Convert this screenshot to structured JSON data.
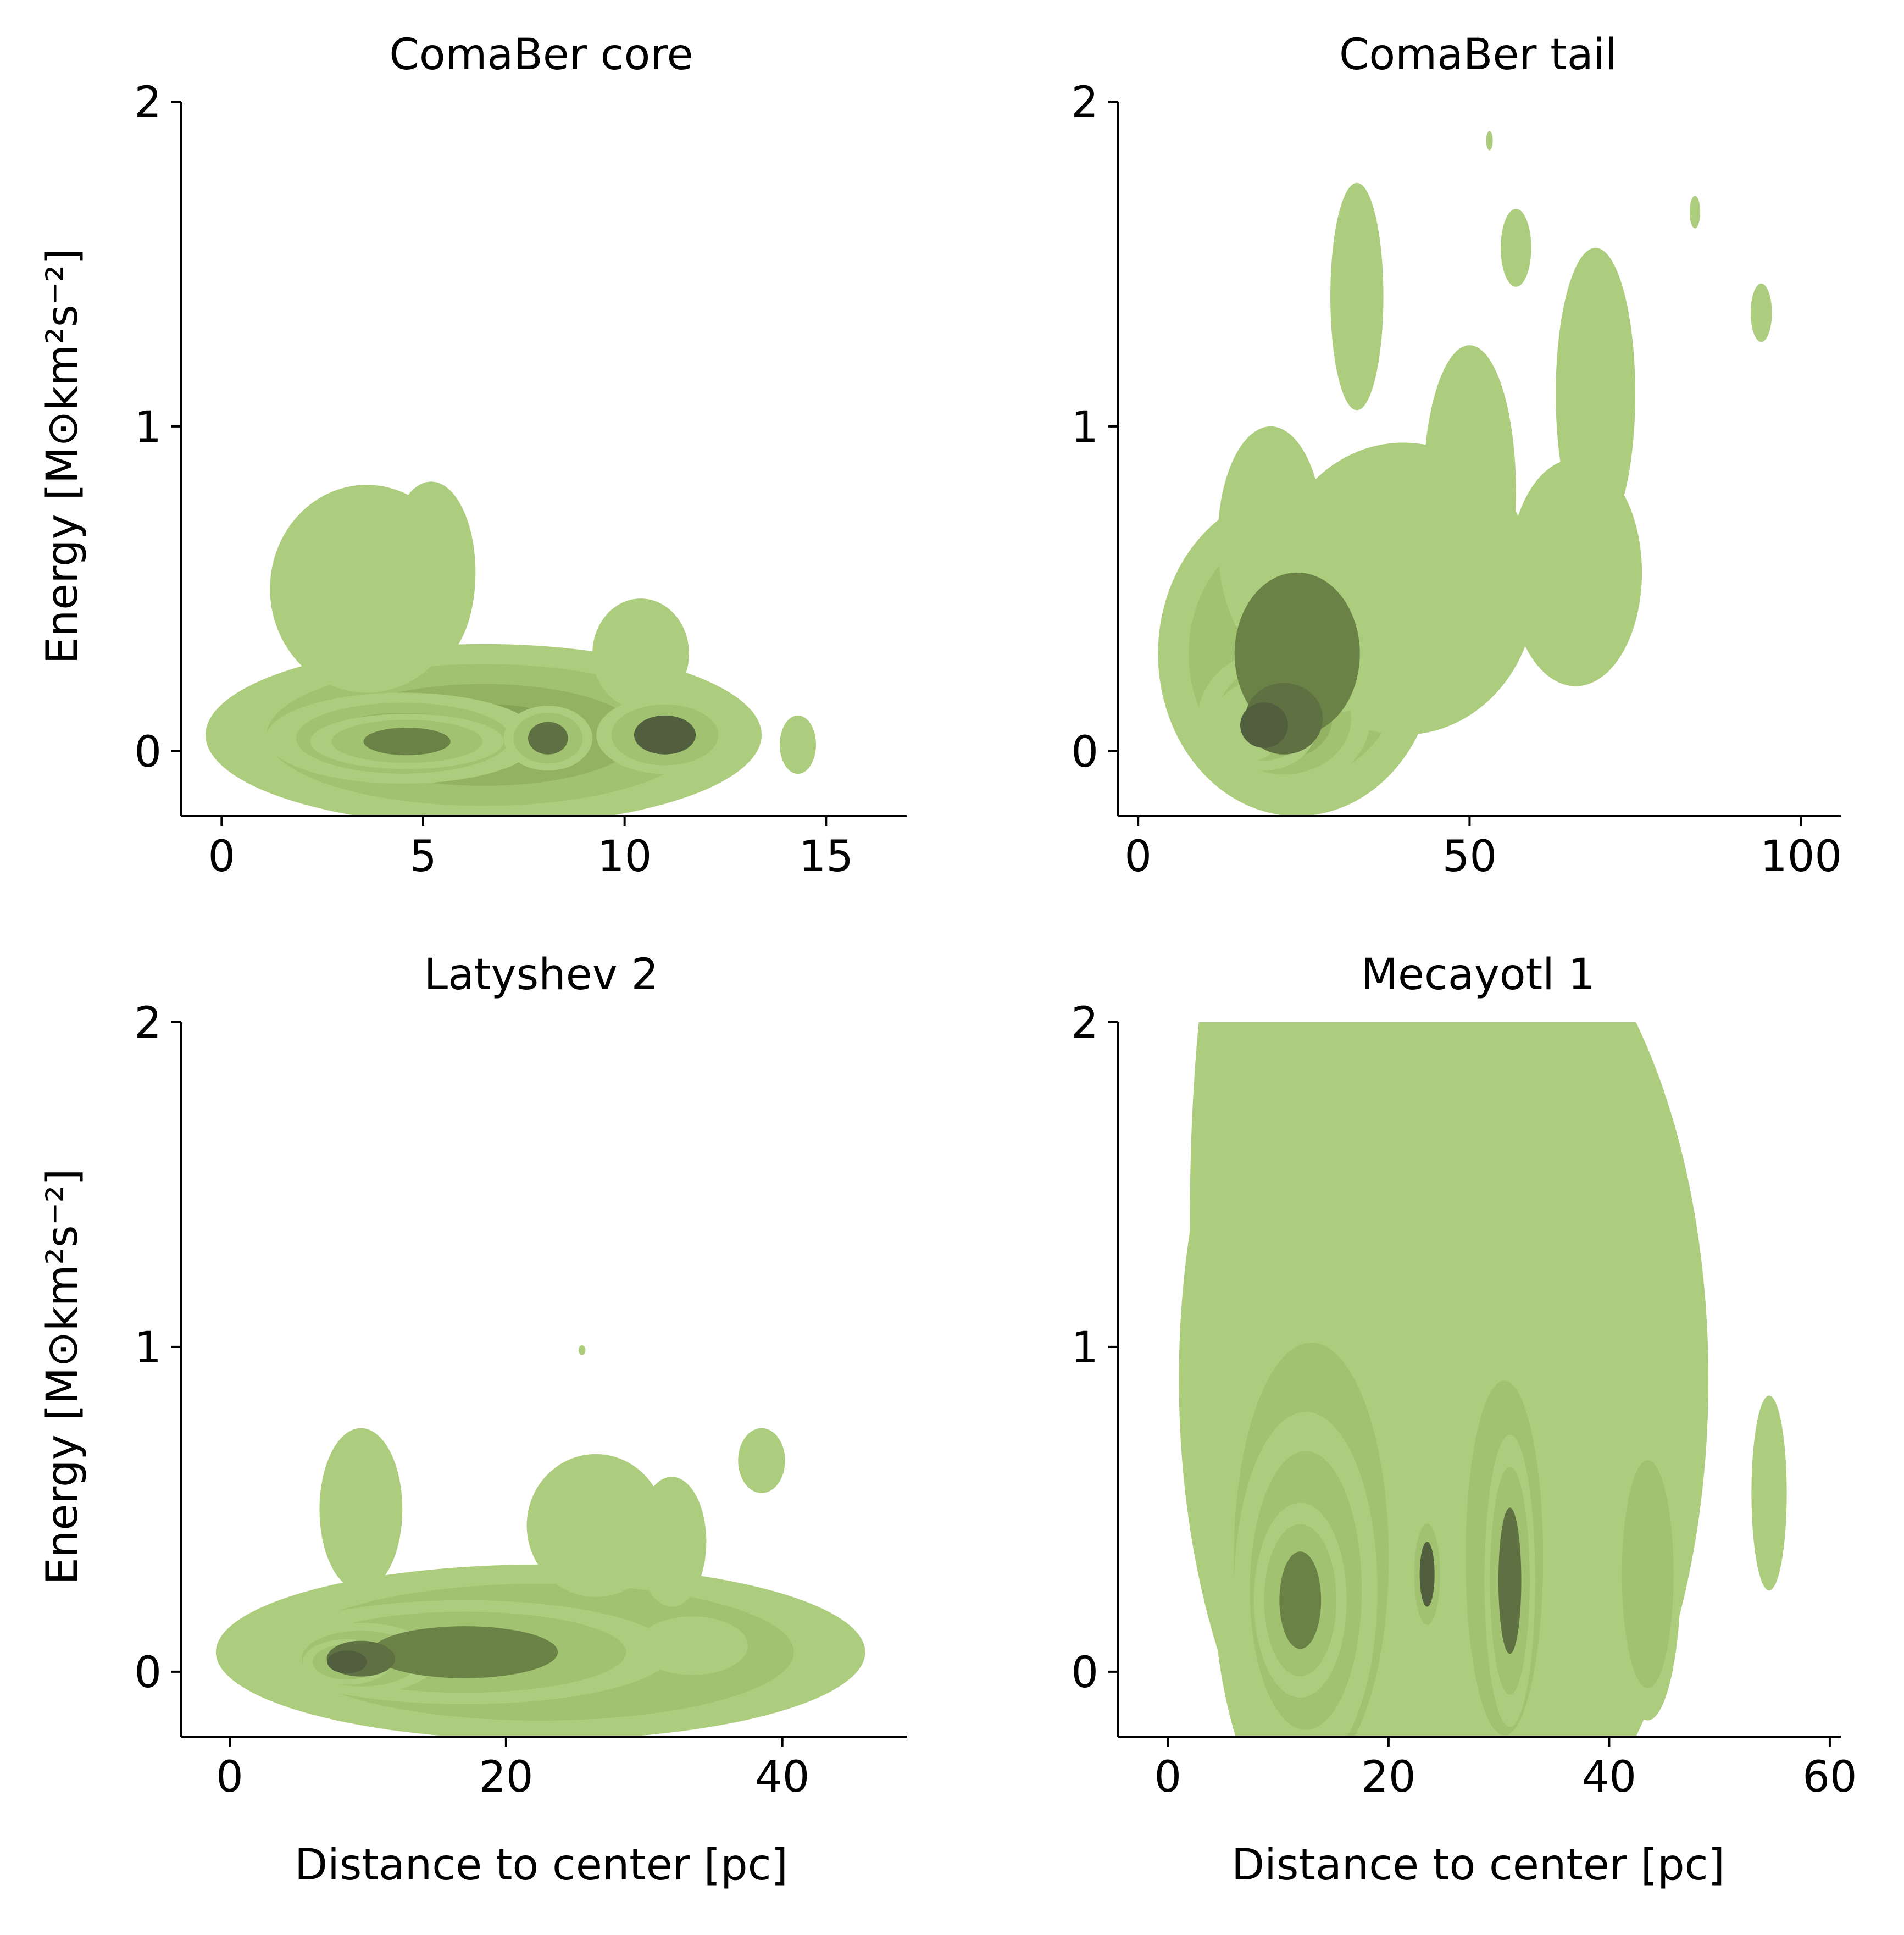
{
  "figure": {
    "palette": [
      "#adcd7e",
      "#9fc06f",
      "#91b05f",
      "#84a154",
      "#76904a",
      "#6a8245",
      "#5f7143",
      "#525f3f"
    ],
    "axis_color": "#000000"
  },
  "chart_data": [
    {
      "type": "kde-contour",
      "title": "ComaBer core",
      "xlabel": "",
      "ylabel": "Energy [M⊙km²s⁻²]",
      "xlim": [
        -1,
        17
      ],
      "ylim": [
        -0.2,
        2
      ],
      "xticks": [
        0,
        5,
        10,
        15
      ],
      "yticks": [
        0,
        1,
        2
      ],
      "grid": false,
      "blobs": [
        {
          "cx": 6.5,
          "cy": 0.05,
          "rx": 6.9,
          "ry": 0.28,
          "levels": 4
        },
        {
          "cx": 3.6,
          "cy": 0.5,
          "rx": 2.4,
          "ry": 0.32,
          "levels": 1
        },
        {
          "cx": 5.2,
          "cy": 0.55,
          "rx": 1.1,
          "ry": 0.28,
          "levels": 1
        },
        {
          "cx": 10.4,
          "cy": 0.3,
          "rx": 1.2,
          "ry": 0.17,
          "levels": 1
        },
        {
          "cx": 4.5,
          "cy": 0.04,
          "rx": 3.4,
          "ry": 0.14,
          "levels": 3
        },
        {
          "cx": 4.6,
          "cy": 0.03,
          "rx": 2.4,
          "ry": 0.085,
          "levels": 2
        },
        {
          "cx": 8.1,
          "cy": 0.04,
          "rx": 1.1,
          "ry": 0.1,
          "levels": 2
        },
        {
          "cx": 11.0,
          "cy": 0.05,
          "rx": 1.7,
          "ry": 0.12,
          "levels": 2
        },
        {
          "cx": 14.3,
          "cy": 0.02,
          "rx": 0.45,
          "ry": 0.09,
          "levels": 1
        }
      ]
    },
    {
      "type": "kde-contour",
      "title": "ComaBer tail",
      "xlabel": "",
      "ylabel": "",
      "xlim": [
        -3,
        106
      ],
      "ylim": [
        -0.2,
        2
      ],
      "xticks": [
        0,
        50,
        100
      ],
      "yticks": [
        0,
        1,
        2
      ],
      "grid": false,
      "blobs": [
        {
          "cx": 24,
          "cy": 0.3,
          "rx": 21,
          "ry": 0.5,
          "levels": 2
        },
        {
          "cx": 40,
          "cy": 0.5,
          "rx": 20,
          "ry": 0.45,
          "levels": 1
        },
        {
          "cx": 20,
          "cy": 0.65,
          "rx": 8,
          "ry": 0.35,
          "levels": 1
        },
        {
          "cx": 50,
          "cy": 0.8,
          "rx": 7,
          "ry": 0.45,
          "levels": 1
        },
        {
          "cx": 66,
          "cy": 0.55,
          "rx": 10,
          "ry": 0.35,
          "levels": 1
        },
        {
          "cx": 69,
          "cy": 1.1,
          "rx": 6,
          "ry": 0.45,
          "levels": 1
        },
        {
          "cx": 33,
          "cy": 1.4,
          "rx": 4,
          "ry": 0.35,
          "levels": 1
        },
        {
          "cx": 57,
          "cy": 1.55,
          "rx": 2.3,
          "ry": 0.12,
          "levels": 1
        },
        {
          "cx": 94,
          "cy": 1.35,
          "rx": 1.6,
          "ry": 0.09,
          "levels": 1
        },
        {
          "cx": 84,
          "cy": 1.66,
          "rx": 0.8,
          "ry": 0.05,
          "levels": 1
        },
        {
          "cx": 53,
          "cy": 1.88,
          "rx": 0.5,
          "ry": 0.03,
          "levels": 1
        },
        {
          "cx": 22,
          "cy": 0.1,
          "rx": 13,
          "ry": 0.22,
          "levels": 3
        },
        {
          "cx": 19,
          "cy": 0.08,
          "rx": 8,
          "ry": 0.14,
          "levels": 2
        },
        {
          "cx": 17,
          "cy": 0.08,
          "rx": 5,
          "ry": 0.11,
          "levels": 1
        },
        {
          "cx": 30,
          "cy": 0.2,
          "rx": 6,
          "ry": 0.08,
          "levels": 1
        }
      ]
    },
    {
      "type": "kde-contour",
      "title": "Latyshev 2",
      "xlabel": "Distance to center [pc]",
      "ylabel": "Energy [M⊙km²s⁻²]",
      "xlim": [
        -3.5,
        49
      ],
      "ylim": [
        -0.2,
        2
      ],
      "xticks": [
        0,
        20,
        40
      ],
      "yticks": [
        0,
        1,
        2
      ],
      "grid": false,
      "blobs": [
        {
          "cx": 22.5,
          "cy": 0.06,
          "rx": 23.5,
          "ry": 0.27,
          "levels": 2
        },
        {
          "cx": 9.5,
          "cy": 0.5,
          "rx": 3,
          "ry": 0.25,
          "levels": 1
        },
        {
          "cx": 26.5,
          "cy": 0.45,
          "rx": 5,
          "ry": 0.22,
          "levels": 1
        },
        {
          "cx": 32,
          "cy": 0.4,
          "rx": 2.5,
          "ry": 0.2,
          "levels": 1
        },
        {
          "cx": 38.5,
          "cy": 0.65,
          "rx": 1.7,
          "ry": 0.1,
          "levels": 1
        },
        {
          "cx": 25.5,
          "cy": 0.99,
          "rx": 0.25,
          "ry": 0.015,
          "levels": 1
        },
        {
          "cx": 17,
          "cy": 0.06,
          "rx": 15,
          "ry": 0.16,
          "levels": 2
        },
        {
          "cx": 9.5,
          "cy": 0.04,
          "rx": 5.5,
          "ry": 0.11,
          "levels": 2
        },
        {
          "cx": 8.5,
          "cy": 0.03,
          "rx": 3.2,
          "ry": 0.07,
          "levels": 2
        },
        {
          "cx": 33.5,
          "cy": 0.08,
          "rx": 4,
          "ry": 0.09,
          "levels": 1
        }
      ]
    },
    {
      "type": "kde-contour",
      "title": "Mecayotl 1",
      "xlabel": "Distance to center [pc]",
      "ylabel": "",
      "xlim": [
        -4.5,
        61
      ],
      "ylim": [
        -0.2,
        2
      ],
      "xticks": [
        0,
        20,
        40,
        60
      ],
      "yticks": [
        0,
        1,
        2
      ],
      "grid": false,
      "blobs": [
        {
          "cx": 25,
          "cy": 0.9,
          "rx": 24,
          "ry": 1.6,
          "levels": 1
        },
        {
          "cx": 8,
          "cy": 1.4,
          "rx": 6,
          "ry": 1.2,
          "levels": 1
        },
        {
          "cx": 36,
          "cy": 1.6,
          "rx": 4,
          "ry": 0.8,
          "levels": 1
        },
        {
          "cx": 54.5,
          "cy": 0.55,
          "rx": 1.6,
          "ry": 0.3,
          "levels": 1
        },
        {
          "cx": 13,
          "cy": 0.35,
          "rx": 9,
          "ry": 0.85,
          "levels": 2
        },
        {
          "cx": 30.5,
          "cy": 0.35,
          "rx": 4.5,
          "ry": 0.7,
          "levels": 2
        },
        {
          "cx": 43.5,
          "cy": 0.3,
          "rx": 3,
          "ry": 0.45,
          "levels": 2
        },
        {
          "cx": 12.5,
          "cy": 0.25,
          "rx": 6.5,
          "ry": 0.55,
          "levels": 2
        },
        {
          "cx": 12,
          "cy": 0.22,
          "rx": 4.2,
          "ry": 0.3,
          "levels": 2
        },
        {
          "cx": 31,
          "cy": 0.28,
          "rx": 2.3,
          "ry": 0.45,
          "levels": 2
        },
        {
          "cx": 23.5,
          "cy": 0.3,
          "rx": 1.5,
          "ry": 0.2,
          "levels": 2
        }
      ]
    }
  ]
}
